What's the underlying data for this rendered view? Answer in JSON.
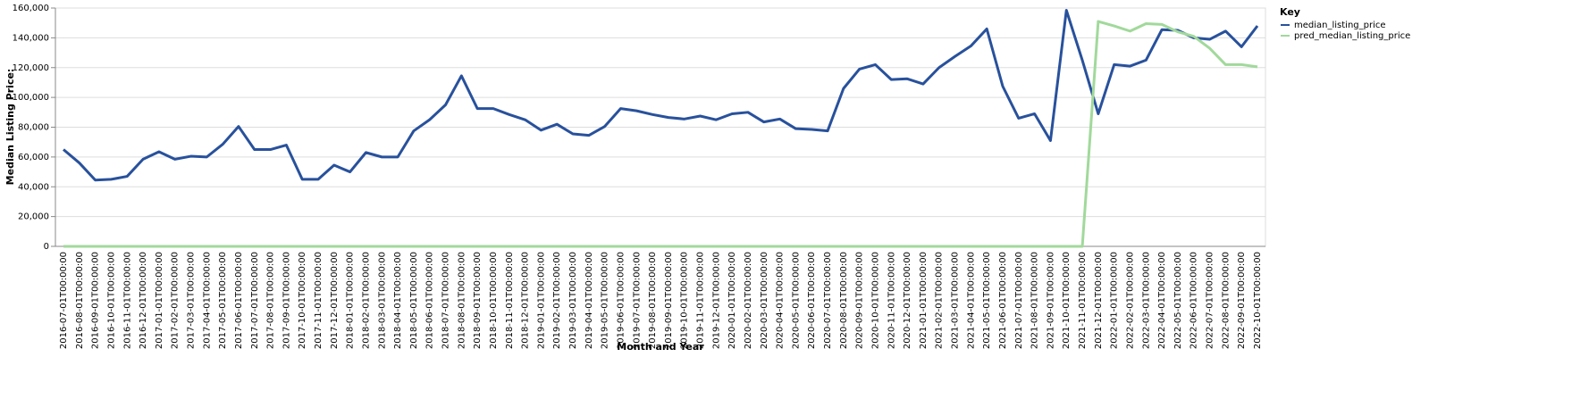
{
  "chart_data": {
    "type": "line",
    "x_label": "Month and Year",
    "y_label": "Median Listing Price:",
    "legend_title": "Key",
    "legend_position": "right",
    "grid": true,
    "categories": [
      "2016-07-01T00:00:00",
      "2016-08-01T00:00:00",
      "2016-09-01T00:00:00",
      "2016-10-01T00:00:00",
      "2016-11-01T00:00:00",
      "2016-12-01T00:00:00",
      "2017-01-01T00:00:00",
      "2017-02-01T00:00:00",
      "2017-03-01T00:00:00",
      "2017-04-01T00:00:00",
      "2017-05-01T00:00:00",
      "2017-06-01T00:00:00",
      "2017-07-01T00:00:00",
      "2017-08-01T00:00:00",
      "2017-09-01T00:00:00",
      "2017-10-01T00:00:00",
      "2017-11-01T00:00:00",
      "2017-12-01T00:00:00",
      "2018-01-01T00:00:00",
      "2018-02-01T00:00:00",
      "2018-03-01T00:00:00",
      "2018-04-01T00:00:00",
      "2018-05-01T00:00:00",
      "2018-06-01T00:00:00",
      "2018-07-01T00:00:00",
      "2018-08-01T00:00:00",
      "2018-09-01T00:00:00",
      "2018-10-01T00:00:00",
      "2018-11-01T00:00:00",
      "2018-12-01T00:00:00",
      "2019-01-01T00:00:00",
      "2019-02-01T00:00:00",
      "2019-03-01T00:00:00",
      "2019-04-01T00:00:00",
      "2019-05-01T00:00:00",
      "2019-06-01T00:00:00",
      "2019-07-01T00:00:00",
      "2019-08-01T00:00:00",
      "2019-09-01T00:00:00",
      "2019-10-01T00:00:00",
      "2019-11-01T00:00:00",
      "2019-12-01T00:00:00",
      "2020-01-01T00:00:00",
      "2020-02-01T00:00:00",
      "2020-03-01T00:00:00",
      "2020-04-01T00:00:00",
      "2020-05-01T00:00:00",
      "2020-06-01T00:00:00",
      "2020-07-01T00:00:00",
      "2020-08-01T00:00:00",
      "2020-09-01T00:00:00",
      "2020-10-01T00:00:00",
      "2020-11-01T00:00:00",
      "2020-12-01T00:00:00",
      "2021-01-01T00:00:00",
      "2021-02-01T00:00:00",
      "2021-03-01T00:00:00",
      "2021-04-01T00:00:00",
      "2021-05-01T00:00:00",
      "2021-06-01T00:00:00",
      "2021-07-01T00:00:00",
      "2021-08-01T00:00:00",
      "2021-09-01T00:00:00",
      "2021-10-01T00:00:00",
      "2021-11-01T00:00:00",
      "2021-12-01T00:00:00",
      "2022-01-01T00:00:00",
      "2022-02-01T00:00:00",
      "2022-03-01T00:00:00",
      "2022-04-01T00:00:00",
      "2022-05-01T00:00:00",
      "2022-06-01T00:00:00",
      "2022-07-01T00:00:00",
      "2022-08-01T00:00:00",
      "2022-09-01T00:00:00",
      "2022-10-01T00:00:00"
    ],
    "series": [
      {
        "name": "median_listing_price",
        "color": "#28519c",
        "values": [
          65000,
          56000,
          44500,
          45000,
          47000,
          58500,
          63500,
          58500,
          60500,
          60000,
          68500,
          80500,
          65000,
          65000,
          68000,
          45000,
          45000,
          54500,
          50000,
          63000,
          60000,
          60000,
          77500,
          85000,
          95000,
          114500,
          92500,
          92500,
          88500,
          85000,
          78000,
          82000,
          75500,
          74500,
          80500,
          92500,
          91000,
          88500,
          86500,
          85500,
          87500,
          85000,
          89000,
          90000,
          83500,
          85500,
          79000,
          78500,
          77500,
          106000,
          119000,
          122000,
          112000,
          112500,
          109000,
          120000,
          127500,
          134500,
          146000,
          107500,
          86000,
          89000,
          71000,
          158500,
          125000,
          89000,
          122000,
          121000,
          125000,
          145500,
          145000,
          140000,
          139000,
          144500,
          134000,
          148000
        ]
      },
      {
        "name": "pred_median_listing_price",
        "color": "#a1d99b",
        "values": [
          0,
          0,
          0,
          0,
          0,
          0,
          0,
          0,
          0,
          0,
          0,
          0,
          0,
          0,
          0,
          0,
          0,
          0,
          0,
          0,
          0,
          0,
          0,
          0,
          0,
          0,
          0,
          0,
          0,
          0,
          0,
          0,
          0,
          0,
          0,
          0,
          0,
          0,
          0,
          0,
          0,
          0,
          0,
          0,
          0,
          0,
          0,
          0,
          0,
          0,
          0,
          0,
          0,
          0,
          0,
          0,
          0,
          0,
          0,
          0,
          0,
          0,
          0,
          0,
          0,
          151000,
          148000,
          144500,
          149500,
          149000,
          144000,
          141000,
          133000,
          122000,
          122000,
          120500
        ]
      }
    ],
    "ylim": [
      0,
      160000
    ],
    "yticks": [
      0,
      {
        "value": 20000,
        "label": "20,000"
      },
      {
        "value": 40000,
        "label": "40,000"
      },
      {
        "value": 60000,
        "label": "60,000"
      },
      {
        "value": 80000,
        "label": "80,000"
      },
      {
        "value": 100000,
        "label": "100,000"
      },
      {
        "value": 120000,
        "label": "120,000"
      },
      {
        "value": 140000,
        "label": "140,000"
      },
      {
        "value": 160000,
        "label": "160,000"
      }
    ]
  }
}
